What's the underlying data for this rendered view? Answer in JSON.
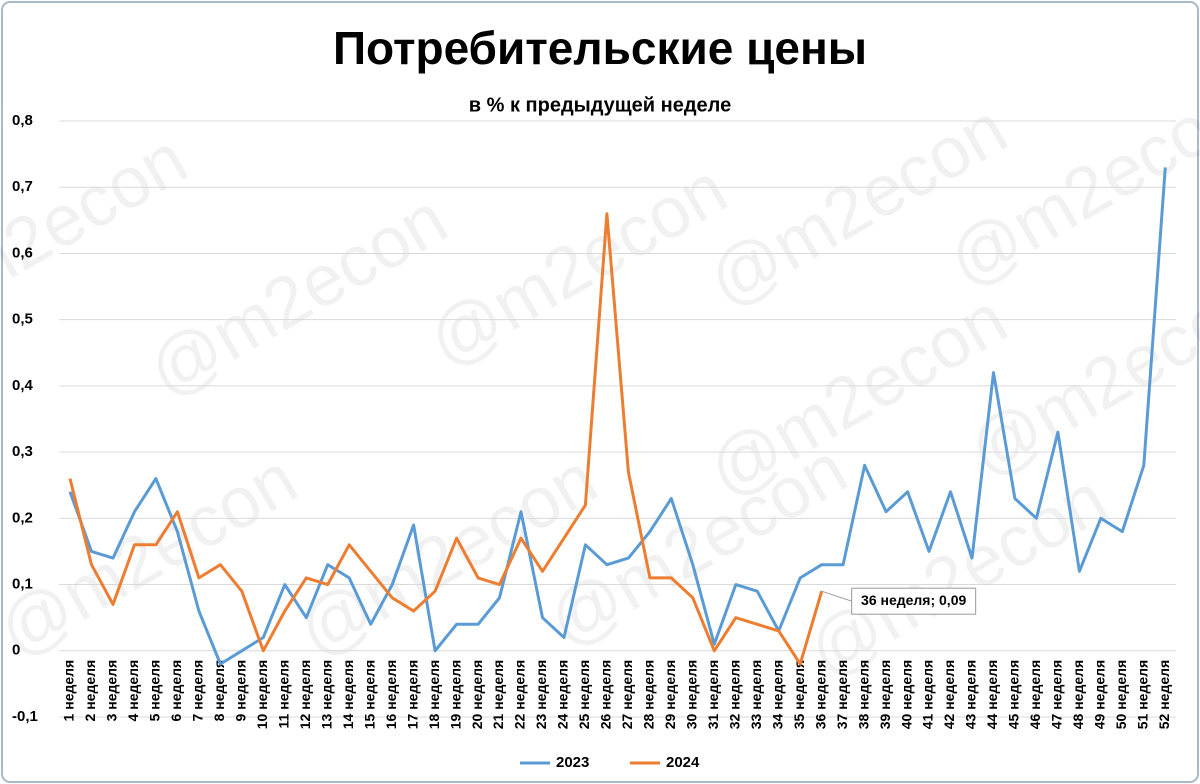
{
  "chart_data": {
    "type": "line",
    "title": "Потребительские цены",
    "subtitle": "в % к предыдущей неделе",
    "watermark": "@m2econ",
    "categories": [
      "1 неделя",
      "2 неделя",
      "3 неделя",
      "4 неделя",
      "5 неделя",
      "6 неделя",
      "7 неделя",
      "8 неделя",
      "9 неделя",
      "10 неделя",
      "11 неделя",
      "12 неделя",
      "13 неделя",
      "14 неделя",
      "15 неделя",
      "16 неделя",
      "17 неделя",
      "18 неделя",
      "19 неделя",
      "20 неделя",
      "21 неделя",
      "22 неделя",
      "23 неделя",
      "24 неделя",
      "25 неделя",
      "26 неделя",
      "27 неделя",
      "28 неделя",
      "29 неделя",
      "30 неделя",
      "31 неделя",
      "32 неделя",
      "33 неделя",
      "34 неделя",
      "35 неделя",
      "36 неделя",
      "37 неделя",
      "38 неделя",
      "39 неделя",
      "40 неделя",
      "41 неделя",
      "42 неделя",
      "43 неделя",
      "44 неделя",
      "45 неделя",
      "46 неделя",
      "47 неделя",
      "48 неделя",
      "49 неделя",
      "50 неделя",
      "51 неделя",
      "52 неделя"
    ],
    "series": [
      {
        "name": "2023",
        "color": "#5b9bd5",
        "values": [
          0.24,
          0.15,
          0.14,
          0.21,
          0.26,
          0.18,
          0.06,
          -0.02,
          0.0,
          0.02,
          0.1,
          0.05,
          0.13,
          0.11,
          0.04,
          0.1,
          0.19,
          0.0,
          0.04,
          0.04,
          0.08,
          0.21,
          0.05,
          0.02,
          0.16,
          0.13,
          0.14,
          0.18,
          0.23,
          0.13,
          0.01,
          0.1,
          0.09,
          0.03,
          0.11,
          0.13,
          0.13,
          0.28,
          0.21,
          0.24,
          0.15,
          0.24,
          0.14,
          0.42,
          0.23,
          0.2,
          0.33,
          0.12,
          0.2,
          0.18,
          0.28,
          0.73
        ]
      },
      {
        "name": "2024",
        "color": "#ed7d31",
        "values": [
          0.26,
          0.13,
          0.07,
          0.16,
          0.16,
          0.21,
          0.11,
          0.13,
          0.09,
          0.0,
          0.06,
          0.11,
          0.1,
          0.16,
          0.12,
          0.08,
          0.06,
          0.09,
          0.17,
          0.11,
          0.1,
          0.17,
          0.12,
          0.17,
          0.22,
          0.66,
          0.27,
          0.11,
          0.11,
          0.08,
          0.0,
          0.05,
          0.04,
          0.03,
          -0.02,
          0.09,
          null,
          null,
          null,
          null,
          null,
          null,
          null,
          null,
          null,
          null,
          null,
          null,
          null,
          null,
          null,
          null
        ],
        "value_labels": [
          null,
          null,
          null,
          null,
          null,
          null,
          null,
          null,
          null,
          null,
          null,
          null,
          null,
          null,
          null,
          null,
          null,
          null,
          null,
          null,
          null,
          null,
          null,
          null,
          null,
          null,
          null,
          null,
          null,
          null,
          null,
          null,
          null,
          null,
          null,
          "36 неделя; 0,09",
          null,
          null,
          null,
          null,
          null,
          null,
          null,
          null,
          null,
          null,
          null,
          null,
          null,
          null,
          null,
          null
        ]
      }
    ],
    "ylim": [
      -0.1,
      0.8
    ],
    "yticks": [
      {
        "value": -0.1,
        "label": "-0,1"
      },
      0,
      {
        "value": 0.1,
        "label": "0,1"
      },
      {
        "value": 0.2,
        "label": "0,2"
      },
      {
        "value": 0.3,
        "label": "0,3"
      },
      {
        "value": 0.4,
        "label": "0,4"
      },
      {
        "value": 0.5,
        "label": "0,5"
      },
      {
        "value": 0.6,
        "label": "0,6"
      },
      {
        "value": 0.7,
        "label": "0,7"
      },
      {
        "value": 0.8,
        "label": "0,8"
      }
    ],
    "grid": true,
    "legend": "bottom"
  }
}
